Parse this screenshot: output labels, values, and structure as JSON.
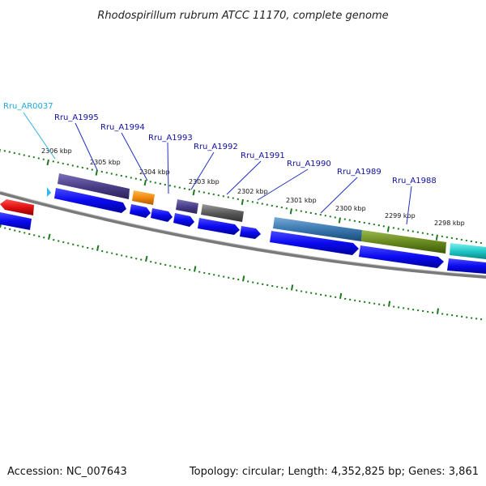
{
  "title": "Rhodospirillum rubrum ATCC 11170, complete genome",
  "accession": "Accession: NC_007643",
  "topology": "Topology: circular; Length: 4,352,825 bp; Genes: 3,861",
  "colors": {
    "backbone": "#8a8a8a",
    "tick_major": "#1a7a1a",
    "tick_minor": "#1a7a1a",
    "cds_blue": "#0a0af0",
    "cds_red": "#e01010",
    "label_blue": "#1010a0",
    "label_cyan": "#20a8d8",
    "leader_blue": "#2030c0",
    "leader_cyan": "#30b0e0"
  },
  "tick_labels": [
    {
      "text": "2306 kbp",
      "kbp": 2306
    },
    {
      "text": "2305 kbp",
      "kbp": 2305
    },
    {
      "text": "2304 kbp",
      "kbp": 2304
    },
    {
      "text": "2303 kbp",
      "kbp": 2303
    },
    {
      "text": "2302 kbp",
      "kbp": 2302
    },
    {
      "text": "2301 kbp",
      "kbp": 2301
    },
    {
      "text": "2300 kbp",
      "kbp": 2300
    },
    {
      "text": "2299 kbp",
      "kbp": 2299
    },
    {
      "text": "2298 kbp",
      "kbp": 2298
    }
  ],
  "gene_labels": [
    {
      "text": "Rru_AR0037",
      "color": "cyan"
    },
    {
      "text": "Rru_A1995",
      "color": "blue"
    },
    {
      "text": "Rru_A1994",
      "color": "blue"
    },
    {
      "text": "Rru_A1993",
      "color": "blue"
    },
    {
      "text": "Rru_A1992",
      "color": "blue"
    },
    {
      "text": "Rru_A1991",
      "color": "blue"
    },
    {
      "text": "Rru_A1990",
      "color": "blue"
    },
    {
      "text": "Rru_A1989",
      "color": "blue"
    },
    {
      "text": "Rru_A1988",
      "color": "blue"
    }
  ],
  "cog_features": [
    {
      "name": "cog-1995",
      "color": "#4a3f88"
    },
    {
      "name": "cog-1994",
      "color": "#f08a10"
    },
    {
      "name": "cog-1993",
      "color": "#4a3f88"
    },
    {
      "name": "cog-1992",
      "color": "#5a5a5a"
    },
    {
      "name": "cog-1990",
      "color": "#3a78b0"
    },
    {
      "name": "cog-1989",
      "color": "#6a8a20"
    },
    {
      "name": "cog-1988",
      "color": "#20c8c8"
    }
  ]
}
